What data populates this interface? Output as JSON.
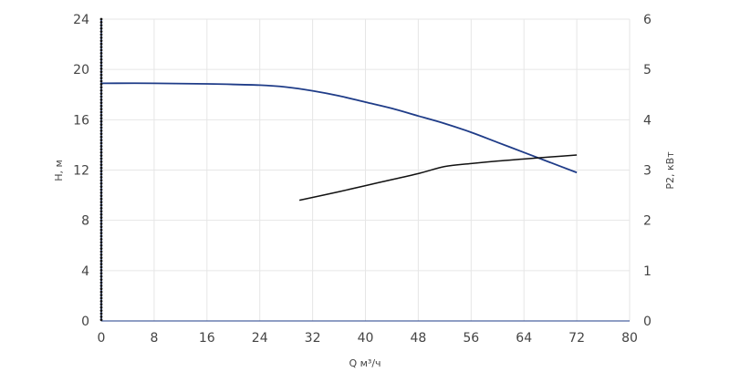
{
  "chart_data": {
    "type": "line",
    "title": "",
    "xlabel": "Q м³/ч",
    "ylabel_left": "H, м",
    "ylabel_right": "P2, кВт",
    "xlim": [
      0,
      80
    ],
    "ylim_left": [
      0,
      24
    ],
    "ylim_right": [
      0,
      6
    ],
    "x_ticks": [
      "0",
      "8",
      "16",
      "24",
      "32",
      "40",
      "48",
      "56",
      "64",
      "72",
      "80"
    ],
    "y_left_ticks": [
      "0",
      "4",
      "8",
      "12",
      "16",
      "20",
      "24"
    ],
    "y_right_ticks": [
      "0",
      "1",
      "2",
      "3",
      "4",
      "5",
      "6"
    ],
    "grid": true,
    "colors": {
      "head": "#1f3c88",
      "power": "#111111",
      "axis": "#1f3c88",
      "grid": "#e6e6e6"
    },
    "series": [
      {
        "key": "head",
        "axis": "left",
        "x": [
          0,
          8,
          16,
          24,
          28,
          32,
          36,
          40,
          44,
          48,
          52,
          56,
          60,
          64,
          68,
          72
        ],
        "y": [
          18.9,
          18.9,
          18.85,
          18.75,
          18.6,
          18.3,
          17.9,
          17.4,
          16.9,
          16.3,
          15.7,
          15.0,
          14.2,
          13.4,
          12.6,
          11.8
        ]
      },
      {
        "key": "power",
        "axis": "right",
        "x": [
          30,
          36,
          42,
          48,
          52,
          56,
          60,
          64,
          68,
          72
        ],
        "y": [
          2.4,
          2.57,
          2.75,
          2.93,
          3.07,
          3.13,
          3.18,
          3.22,
          3.26,
          3.3
        ]
      }
    ]
  }
}
